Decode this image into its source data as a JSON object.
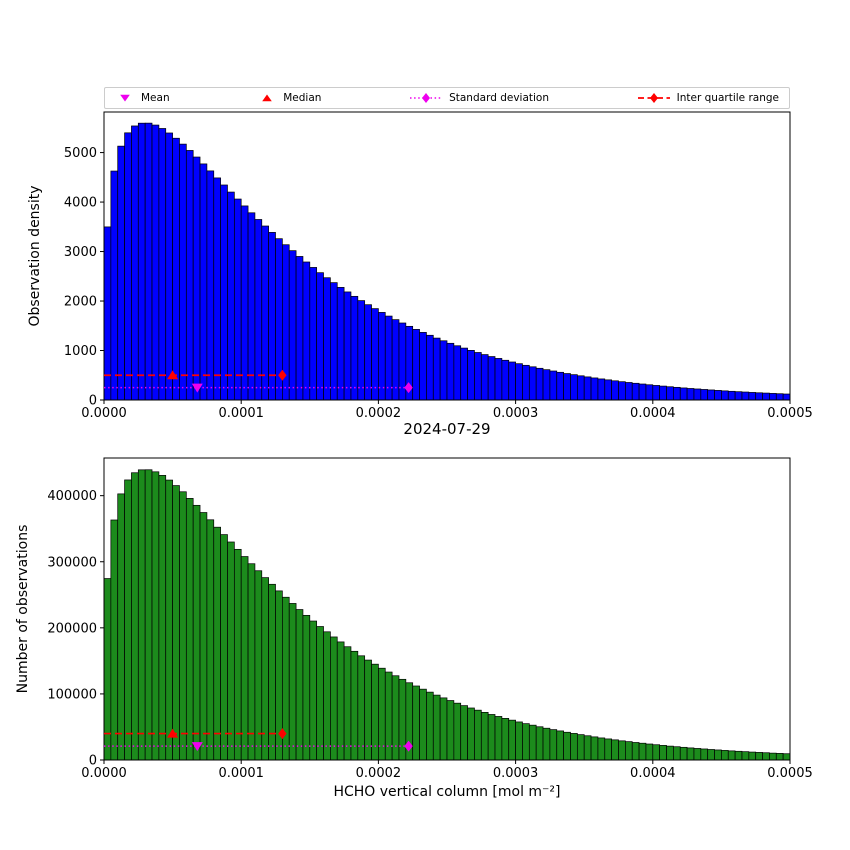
{
  "figure": {
    "title": "2024-07-29",
    "xlabel": "HCHO vertical column [mol m⁻²]"
  },
  "legend": {
    "items": [
      {
        "label": "Mean",
        "marker": "triangle-down",
        "color": "#ee00ee"
      },
      {
        "label": "Median",
        "marker": "triangle-up",
        "color": "#ff0000"
      },
      {
        "label": "Standard deviation",
        "marker": "diamond-with-dotted-line",
        "color": "#ee00ee"
      },
      {
        "label": "Inter quartile range",
        "marker": "diamond-with-dashed-line",
        "color": "#ff0000"
      }
    ]
  },
  "chart_data": [
    {
      "type": "bar",
      "name": "observation-density-histogram",
      "ylabel": "Observation density",
      "bar_color": "#0000ff",
      "edge_color": "#000000",
      "grid": false,
      "x_range": [
        0,
        0.0005
      ],
      "bin_width": 5e-06,
      "ylim": [
        0,
        5820
      ],
      "xticks": [
        0,
        0.0001,
        0.0002,
        0.0003,
        0.0004,
        0.0005
      ],
      "xtick_labels": [
        "0.0000",
        "0.0001",
        "0.0002",
        "0.0003",
        "0.0004",
        "0.0005"
      ],
      "yticks": [
        0,
        1000,
        2000,
        3000,
        4000,
        5000
      ],
      "ytick_labels": [
        "0",
        "1000",
        "2000",
        "3000",
        "4000",
        "5000"
      ],
      "values": [
        3498,
        4627,
        5130,
        5399,
        5538,
        5594,
        5595,
        5556,
        5487,
        5396,
        5290,
        5171,
        5043,
        4910,
        4771,
        4630,
        4488,
        4345,
        4202,
        4061,
        3922,
        3783,
        3648,
        3516,
        3387,
        3260,
        3138,
        3018,
        2901,
        2789,
        2679,
        2573,
        2471,
        2372,
        2276,
        2184,
        2095,
        2009,
        1926,
        1847,
        1770,
        1696,
        1624,
        1556,
        1489,
        1427,
        1366,
        1308,
        1251,
        1197,
        1146,
        1096,
        1049,
        1003,
        960,
        918,
        878,
        840,
        803,
        768,
        734,
        701,
        671,
        641,
        613,
        586,
        560,
        535,
        512,
        489,
        467,
        446,
        426,
        407,
        388,
        370,
        354,
        338,
        323,
        308,
        294,
        281,
        268,
        256,
        244,
        233,
        223,
        213,
        203,
        194,
        185,
        176,
        168,
        161,
        153,
        146,
        140,
        133,
        127,
        121
      ],
      "markers": {
        "mean": {
          "x": 6.8e-05,
          "y": 250,
          "color": "#ee00ee"
        },
        "median": {
          "x": 5e-05,
          "y": 500,
          "color": "#ff0000"
        },
        "std": {
          "x": 0.000222,
          "y": 250,
          "color": "#ee00ee",
          "line": "dotted"
        },
        "iqr": {
          "x": 0.00013,
          "y": 500,
          "color": "#ff0000",
          "line": "dashed"
        }
      }
    },
    {
      "type": "bar",
      "name": "number-of-observations-histogram",
      "ylabel": "Number of observations",
      "bar_color": "#1c8b1c",
      "edge_color": "#000000",
      "grid": false,
      "x_range": [
        0,
        0.0005
      ],
      "bin_width": 5e-06,
      "ylim": [
        0,
        457000
      ],
      "xticks": [
        0,
        0.0001,
        0.0002,
        0.0003,
        0.0004,
        0.0005
      ],
      "xtick_labels": [
        "0.0000",
        "0.0001",
        "0.0002",
        "0.0003",
        "0.0004",
        "0.0005"
      ],
      "yticks": [
        0,
        100000,
        200000,
        300000,
        400000
      ],
      "ytick_labels": [
        "0",
        "100000",
        "200000",
        "300000",
        "400000"
      ],
      "values": [
        274600,
        363200,
        402700,
        423800,
        434700,
        439100,
        439200,
        436100,
        430700,
        423600,
        415300,
        405900,
        395900,
        385400,
        374500,
        363500,
        352300,
        341100,
        329900,
        318800,
        307900,
        297000,
        286400,
        276000,
        265900,
        255900,
        246300,
        236900,
        227700,
        218900,
        210300,
        202000,
        194000,
        186200,
        178700,
        171400,
        164500,
        157700,
        151200,
        145000,
        138900,
        133100,
        127500,
        122100,
        116900,
        112000,
        107200,
        102700,
        98200,
        94000,
        90000,
        86000,
        82300,
        78700,
        75400,
        72100,
        68900,
        65900,
        63000,
        60300,
        57600,
        55000,
        52700,
        50300,
        48100,
        46000,
        44000,
        42000,
        40200,
        38400,
        36700,
        35000,
        33400,
        31900,
        30500,
        29000,
        27800,
        26500,
        25400,
        24200,
        23100,
        22100,
        21000,
        20100,
        19200,
        18300,
        17500,
        16700,
        15900,
        15200,
        14500,
        13800,
        13200,
        12600,
        12000,
        11500,
        11000,
        10400,
        10000,
        9500
      ],
      "markers": {
        "mean": {
          "x": 6.8e-05,
          "y": 21000,
          "color": "#ee00ee"
        },
        "median": {
          "x": 5e-05,
          "y": 40000,
          "color": "#ff0000"
        },
        "std": {
          "x": 0.000222,
          "y": 21000,
          "color": "#ee00ee",
          "line": "dotted"
        },
        "iqr": {
          "x": 0.00013,
          "y": 40000,
          "color": "#ff0000",
          "line": "dashed"
        }
      }
    }
  ]
}
